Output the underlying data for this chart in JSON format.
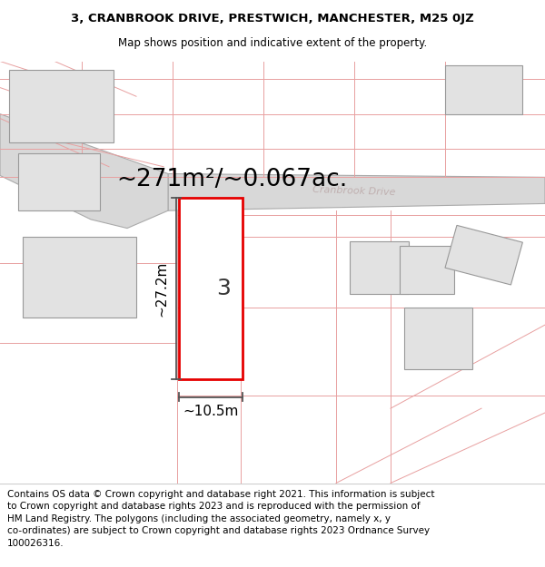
{
  "title_line1": "3, CRANBROOK DRIVE, PRESTWICH, MANCHESTER, M25 0JZ",
  "title_line2": "Map shows position and indicative extent of the property.",
  "area_text": "~271m²/~0.067ac.",
  "width_label": "~10.5m",
  "height_label": "~27.2m",
  "number_label": "3",
  "footer_lines": [
    "Contains OS data © Crown copyright and database right 2021. This information is subject",
    "to Crown copyright and database rights 2023 and is reproduced with the permission of",
    "HM Land Registry. The polygons (including the associated geometry, namely x, y",
    "co-ordinates) are subject to Crown copyright and database rights 2023 Ordnance Survey",
    "100026316."
  ],
  "map_bg": "#f5f5f5",
  "road_fill": "#d8d8d8",
  "road_edge": "#aaaaaa",
  "building_fill": "#e2e2e2",
  "building_edge": "#999999",
  "boundary_color": "#e8a0a0",
  "highlight_color": "#e60000",
  "dim_color": "#555555",
  "title_fontsize": 9.5,
  "subtitle_fontsize": 8.5,
  "area_fontsize": 19,
  "number_fontsize": 18,
  "label_fontsize": 11,
  "road_label_fontsize": 8,
  "footer_fontsize": 7.5
}
